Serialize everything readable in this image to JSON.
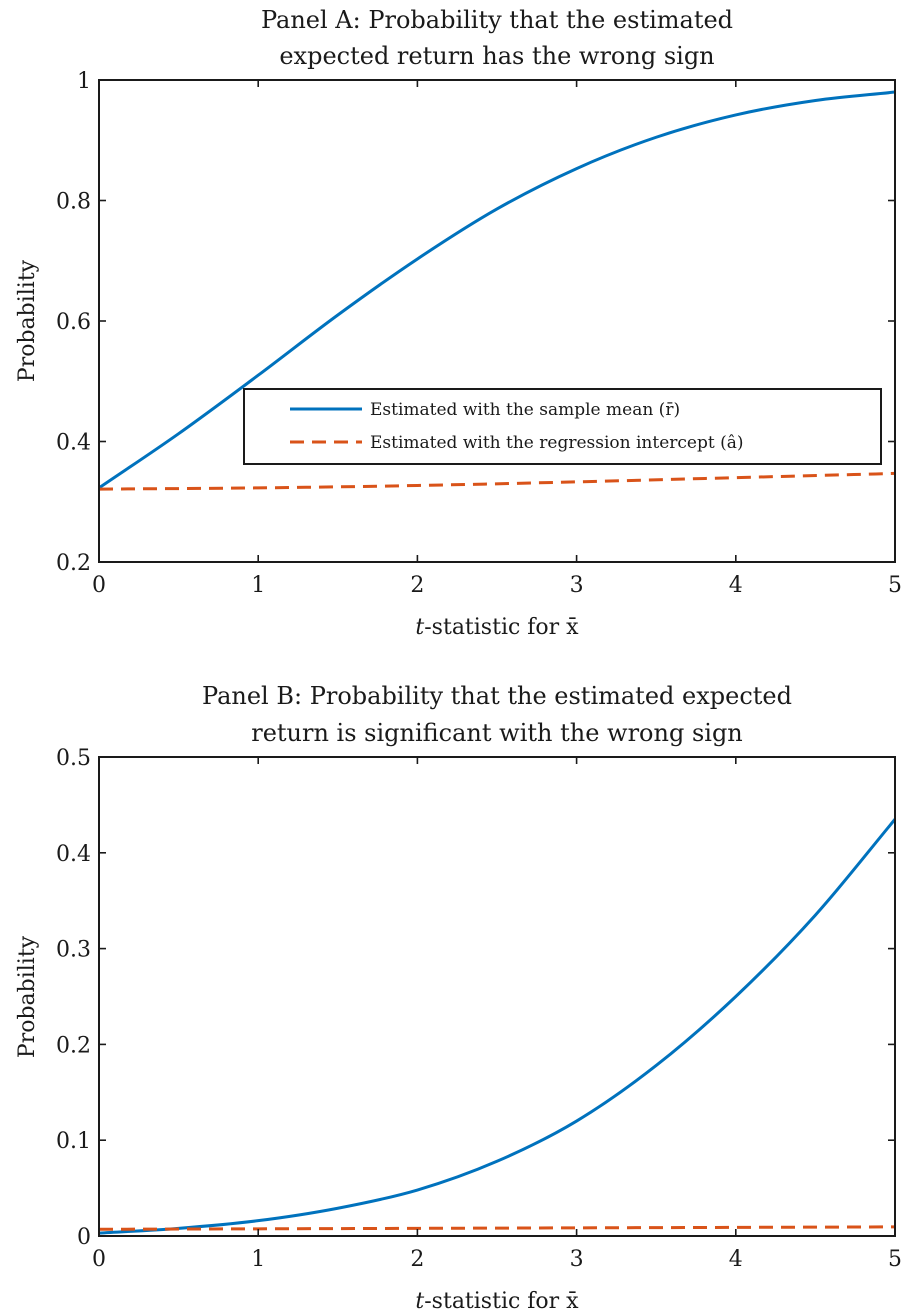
{
  "chart_data": [
    {
      "type": "line",
      "title_lines": [
        "Panel A: Probability that the estimated",
        "expected return has the wrong sign"
      ],
      "xlabel_italic": "t",
      "xlabel_rest": "-statistic for x̄",
      "ylabel": "Probability",
      "xlim": [
        0,
        5
      ],
      "ylim": [
        0.2,
        1
      ],
      "xticks": [
        0,
        1,
        2,
        3,
        4,
        5
      ],
      "xtick_labels": [
        "0",
        "1",
        "2",
        "3",
        "4",
        "5"
      ],
      "yticks": [
        0.2,
        0.4,
        0.6,
        0.8,
        1
      ],
      "ytick_labels": [
        "0.2",
        "0.4",
        "0.6",
        "0.8",
        "1"
      ],
      "grid": false,
      "legend_position": "center-right",
      "series": [
        {
          "name": "Estimated with the sample mean (r̄)",
          "color": "#0072BD",
          "dash": "solid",
          "x": [
            0,
            0.5,
            1,
            1.5,
            2,
            2.5,
            3,
            3.5,
            4,
            4.5,
            5
          ],
          "y": [
            0.323,
            0.413,
            0.51,
            0.61,
            0.703,
            0.786,
            0.853,
            0.905,
            0.942,
            0.966,
            0.98
          ]
        },
        {
          "name": "Estimated with the regression intercept (â)",
          "color": "#D95319",
          "dash": "dashed",
          "x": [
            0,
            1,
            2,
            3,
            4,
            5
          ],
          "y": [
            0.321,
            0.323,
            0.327,
            0.333,
            0.34,
            0.347
          ]
        }
      ]
    },
    {
      "type": "line",
      "title_lines": [
        "Panel B: Probability that the estimated expected",
        "return is significant with the wrong sign"
      ],
      "xlabel_italic": "t",
      "xlabel_rest": "-statistic for x̄",
      "ylabel": "Probability",
      "xlim": [
        0,
        5
      ],
      "ylim": [
        0,
        0.5
      ],
      "xticks": [
        0,
        1,
        2,
        3,
        4,
        5
      ],
      "xtick_labels": [
        "0",
        "1",
        "2",
        "3",
        "4",
        "5"
      ],
      "yticks": [
        0,
        0.1,
        0.2,
        0.3,
        0.4,
        0.5
      ],
      "ytick_labels": [
        "0",
        "0.1",
        "0.2",
        "0.3",
        "0.4",
        "0.5"
      ],
      "grid": false,
      "series": [
        {
          "color": "#0072BD",
          "dash": "solid",
          "x": [
            0,
            0.5,
            1,
            1.5,
            2,
            2.5,
            3,
            3.5,
            4,
            4.5,
            5
          ],
          "y": [
            0.003,
            0.008,
            0.016,
            0.029,
            0.048,
            0.078,
            0.12,
            0.178,
            0.25,
            0.335,
            0.435
          ]
        },
        {
          "color": "#D95319",
          "dash": "dashed",
          "x": [
            0,
            1,
            2,
            3,
            4,
            5
          ],
          "y": [
            0.007,
            0.0075,
            0.008,
            0.0085,
            0.009,
            0.0095
          ]
        }
      ]
    }
  ]
}
